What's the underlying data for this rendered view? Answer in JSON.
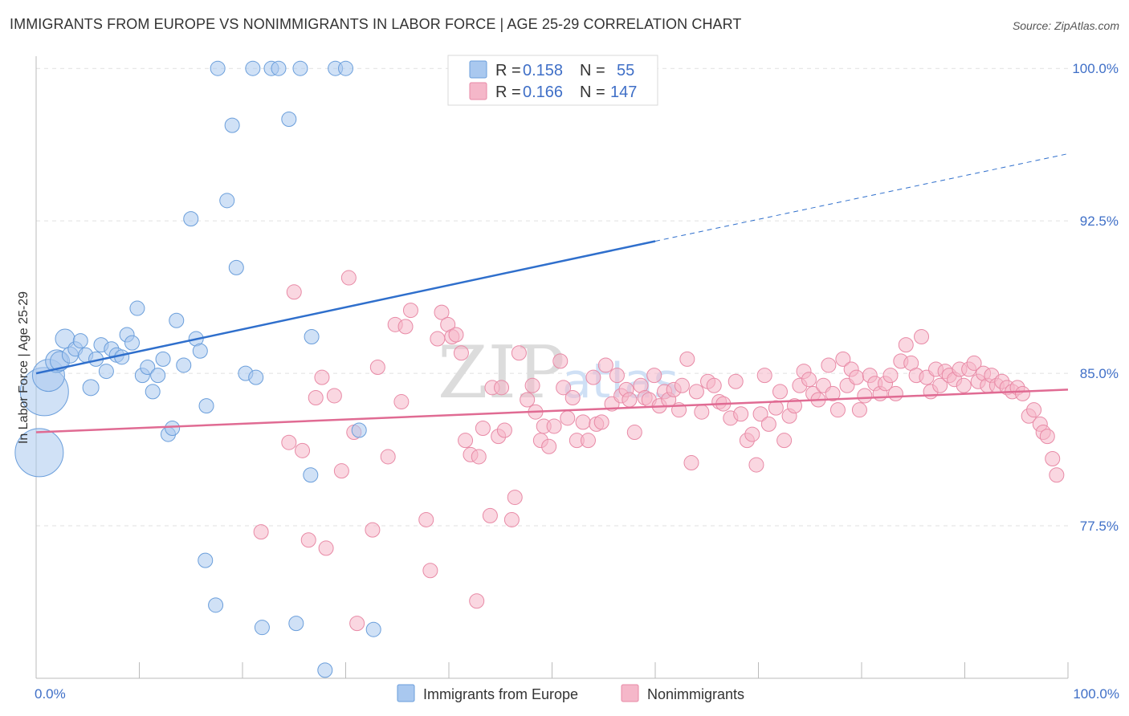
{
  "title": "IMMIGRANTS FROM EUROPE VS NONIMMIGRANTS IN LABOR FORCE | AGE 25-29 CORRELATION CHART",
  "source": "Source: ZipAtlas.com",
  "watermark": {
    "zip": "ZIP",
    "atlas": "atlas"
  },
  "legend": {
    "rows": [
      {
        "r_label": "R =",
        "r_value": "0.158",
        "n_label": "N =",
        "n_value": "55",
        "color": "#a9c8ef"
      },
      {
        "r_label": "R =",
        "r_value": "0.166",
        "n_label": "N =",
        "n_value": "147",
        "color": "#f5b7c9"
      }
    ]
  },
  "bottom_legend": [
    {
      "label": "Immigrants from Europe",
      "color": "#a9c8ef"
    },
    {
      "label": "Nonimmigrants",
      "color": "#f5b7c9"
    }
  ],
  "chart_data": {
    "type": "scatter",
    "title": "IMMIGRANTS FROM EUROPE VS NONIMMIGRANTS IN LABOR FORCE | AGE 25-29 CORRELATION CHART",
    "xlabel": "",
    "ylabel": "In Labor Force | Age 25-29",
    "xlim": [
      0,
      100
    ],
    "ylim": [
      70.0,
      100.6
    ],
    "x_tick_labels": [
      {
        "value": 0,
        "label": "0.0%"
      },
      {
        "value": 100,
        "label": "100.0%"
      }
    ],
    "y_ticks": [
      {
        "value": 100.0,
        "label": "100.0%"
      },
      {
        "value": 92.5,
        "label": "92.5%"
      },
      {
        "value": 85.0,
        "label": "85.0%"
      },
      {
        "value": 77.5,
        "label": "77.5%"
      }
    ],
    "x_minor_ticks": [
      0,
      10,
      20,
      30,
      40,
      50,
      60,
      70,
      80,
      90,
      100
    ],
    "grid": true,
    "series": [
      {
        "name": "Immigrants from Europe",
        "color": "#a9c8ef",
        "stroke": "#6a9edb",
        "trend": {
          "x0": 0,
          "y0": 85.0,
          "x1": 60,
          "y1": 91.5,
          "x_end_dashed": 100,
          "y_end_dashed": 95.8,
          "color": "#2f6fcc"
        },
        "points": [
          [
            0.3,
            81.1,
            30
          ],
          [
            0.8,
            84.1,
            30
          ],
          [
            1.2,
            84.9,
            20
          ],
          [
            2.0,
            85.6,
            14
          ],
          [
            2.3,
            85.6,
            12
          ],
          [
            2.8,
            86.7,
            12
          ],
          [
            3.3,
            85.9,
            10
          ],
          [
            3.8,
            86.2,
            9
          ],
          [
            4.3,
            86.6,
            9
          ],
          [
            4.8,
            85.9,
            9
          ],
          [
            5.3,
            84.3,
            10
          ],
          [
            5.8,
            85.7,
            9
          ],
          [
            6.3,
            86.4,
            9
          ],
          [
            6.8,
            85.1,
            9
          ],
          [
            7.3,
            86.2,
            9
          ],
          [
            7.8,
            85.9,
            9
          ],
          [
            8.3,
            85.8,
            9
          ],
          [
            8.8,
            86.9,
            9
          ],
          [
            9.3,
            86.5,
            9
          ],
          [
            9.8,
            88.2,
            9
          ],
          [
            10.3,
            84.9,
            9
          ],
          [
            10.8,
            85.3,
            9
          ],
          [
            11.3,
            84.1,
            9
          ],
          [
            11.8,
            84.9,
            9
          ],
          [
            12.3,
            85.7,
            9
          ],
          [
            12.8,
            82.0,
            9
          ],
          [
            13.2,
            82.3,
            9
          ],
          [
            13.6,
            87.6,
            9
          ],
          [
            14.3,
            85.4,
            9
          ],
          [
            15.0,
            92.6,
            9
          ],
          [
            15.5,
            86.7,
            9
          ],
          [
            15.9,
            86.1,
            9
          ],
          [
            16.5,
            83.4,
            9
          ],
          [
            16.4,
            75.8,
            9
          ],
          [
            17.4,
            73.6,
            9
          ],
          [
            17.6,
            100.0,
            9
          ],
          [
            18.5,
            93.5,
            9
          ],
          [
            19.0,
            97.2,
            9
          ],
          [
            19.4,
            90.2,
            9
          ],
          [
            20.3,
            85.0,
            9
          ],
          [
            21.0,
            100.0,
            9
          ],
          [
            21.3,
            84.8,
            9
          ],
          [
            21.9,
            72.5,
            9
          ],
          [
            22.8,
            100.0,
            9
          ],
          [
            23.5,
            100.0,
            9
          ],
          [
            24.5,
            97.5,
            9
          ],
          [
            25.2,
            72.7,
            9
          ],
          [
            25.6,
            100.0,
            9
          ],
          [
            26.6,
            80.0,
            9
          ],
          [
            26.7,
            86.8,
            9
          ],
          [
            29.0,
            100.0,
            9
          ],
          [
            28.0,
            70.4,
            9
          ],
          [
            30.0,
            100.0,
            9
          ],
          [
            31.3,
            82.2,
            9
          ],
          [
            32.7,
            72.4,
            9
          ]
        ]
      },
      {
        "name": "Nonimmigrants",
        "color": "#f5b7c9",
        "stroke": "#e88aa6",
        "trend": {
          "x0": 0,
          "y0": 82.1,
          "x1": 100,
          "y1": 84.2,
          "color": "#e06b93"
        },
        "points": [
          [
            21.8,
            77.2
          ],
          [
            24.5,
            81.6
          ],
          [
            25.0,
            89.0
          ],
          [
            25.8,
            81.2
          ],
          [
            26.4,
            76.8
          ],
          [
            27.1,
            83.8
          ],
          [
            27.7,
            84.8
          ],
          [
            28.1,
            76.4
          ],
          [
            28.9,
            83.9
          ],
          [
            29.6,
            80.2
          ],
          [
            30.3,
            89.7
          ],
          [
            30.8,
            82.1
          ],
          [
            31.1,
            72.7
          ],
          [
            32.6,
            77.3
          ],
          [
            33.1,
            85.3
          ],
          [
            34.1,
            80.9
          ],
          [
            34.8,
            87.4
          ],
          [
            35.4,
            83.6
          ],
          [
            35.8,
            87.3
          ],
          [
            36.3,
            88.1
          ],
          [
            37.8,
            77.8
          ],
          [
            38.2,
            75.3
          ],
          [
            38.9,
            86.7
          ],
          [
            39.3,
            88.0
          ],
          [
            39.9,
            87.4
          ],
          [
            40.3,
            86.8
          ],
          [
            40.7,
            86.9
          ],
          [
            41.2,
            86.0
          ],
          [
            41.6,
            81.7
          ],
          [
            42.1,
            81.0
          ],
          [
            42.7,
            73.8
          ],
          [
            42.9,
            80.9
          ],
          [
            43.3,
            82.3
          ],
          [
            44.0,
            78.0
          ],
          [
            44.2,
            84.3
          ],
          [
            44.8,
            81.9
          ],
          [
            45.1,
            84.3
          ],
          [
            45.4,
            82.2
          ],
          [
            46.1,
            77.8
          ],
          [
            46.4,
            78.9
          ],
          [
            46.8,
            86.0
          ],
          [
            47.6,
            83.7
          ],
          [
            48.1,
            84.4
          ],
          [
            48.4,
            83.1
          ],
          [
            48.9,
            81.7
          ],
          [
            49.2,
            82.4
          ],
          [
            49.7,
            81.4
          ],
          [
            50.2,
            82.4
          ],
          [
            50.8,
            85.6
          ],
          [
            51.1,
            84.3
          ],
          [
            51.5,
            82.8
          ],
          [
            52.0,
            83.8
          ],
          [
            52.4,
            81.7
          ],
          [
            53.0,
            82.6
          ],
          [
            53.5,
            81.7
          ],
          [
            54.0,
            84.8
          ],
          [
            54.3,
            82.5
          ],
          [
            54.8,
            82.6
          ],
          [
            55.2,
            85.4
          ],
          [
            55.8,
            83.5
          ],
          [
            56.3,
            84.9
          ],
          [
            56.7,
            83.9
          ],
          [
            57.2,
            84.2
          ],
          [
            57.5,
            83.7
          ],
          [
            58.0,
            82.1
          ],
          [
            58.6,
            84.4
          ],
          [
            59.0,
            83.8
          ],
          [
            59.4,
            83.7
          ],
          [
            59.9,
            84.9
          ],
          [
            60.4,
            83.4
          ],
          [
            60.9,
            84.1
          ],
          [
            61.3,
            83.7
          ],
          [
            61.8,
            84.2
          ],
          [
            62.3,
            83.2
          ],
          [
            62.6,
            84.4
          ],
          [
            63.1,
            85.7
          ],
          [
            63.5,
            80.6
          ],
          [
            64.0,
            84.1
          ],
          [
            64.5,
            83.1
          ],
          [
            65.1,
            84.6
          ],
          [
            65.7,
            84.4
          ],
          [
            66.2,
            83.6
          ],
          [
            66.6,
            83.5
          ],
          [
            67.3,
            82.8
          ],
          [
            67.8,
            84.6
          ],
          [
            68.3,
            83.0
          ],
          [
            68.9,
            81.7
          ],
          [
            69.4,
            82.0
          ],
          [
            69.8,
            80.5
          ],
          [
            70.2,
            83.0
          ],
          [
            70.6,
            84.9
          ],
          [
            71.0,
            82.5
          ],
          [
            71.7,
            83.3
          ],
          [
            72.1,
            84.1
          ],
          [
            72.5,
            81.7
          ],
          [
            73.0,
            82.9
          ],
          [
            73.5,
            83.4
          ],
          [
            74.0,
            84.4
          ],
          [
            74.4,
            85.1
          ],
          [
            74.9,
            84.7
          ],
          [
            75.3,
            84.0
          ],
          [
            75.8,
            83.7
          ],
          [
            76.3,
            84.4
          ],
          [
            76.8,
            85.4
          ],
          [
            77.2,
            84.0
          ],
          [
            77.7,
            83.2
          ],
          [
            78.2,
            85.7
          ],
          [
            78.6,
            84.4
          ],
          [
            79.0,
            85.2
          ],
          [
            79.5,
            84.8
          ],
          [
            79.8,
            83.2
          ],
          [
            80.3,
            83.9
          ],
          [
            80.8,
            84.9
          ],
          [
            81.3,
            84.5
          ],
          [
            81.8,
            84.0
          ],
          [
            82.3,
            84.5
          ],
          [
            82.8,
            84.9
          ],
          [
            83.3,
            84.0
          ],
          [
            83.8,
            85.6
          ],
          [
            84.3,
            86.4
          ],
          [
            84.8,
            85.5
          ],
          [
            85.3,
            84.9
          ],
          [
            85.8,
            86.8
          ],
          [
            86.3,
            84.8
          ],
          [
            86.7,
            84.1
          ],
          [
            87.2,
            85.2
          ],
          [
            87.6,
            84.4
          ],
          [
            88.1,
            85.1
          ],
          [
            88.5,
            84.9
          ],
          [
            89.0,
            84.7
          ],
          [
            89.5,
            85.2
          ],
          [
            89.9,
            84.4
          ],
          [
            90.4,
            85.2
          ],
          [
            90.9,
            85.5
          ],
          [
            91.3,
            84.6
          ],
          [
            91.8,
            85.0
          ],
          [
            92.2,
            84.4
          ],
          [
            92.6,
            84.9
          ],
          [
            93.1,
            84.4
          ],
          [
            93.6,
            84.6
          ],
          [
            94.1,
            84.3
          ],
          [
            94.6,
            84.1
          ],
          [
            95.1,
            84.3
          ],
          [
            95.6,
            84.0
          ],
          [
            96.2,
            82.9
          ],
          [
            96.7,
            83.2
          ],
          [
            97.3,
            82.5
          ],
          [
            97.6,
            82.1
          ],
          [
            98.0,
            81.9
          ],
          [
            98.5,
            80.8
          ],
          [
            98.9,
            80.0
          ]
        ]
      }
    ]
  }
}
